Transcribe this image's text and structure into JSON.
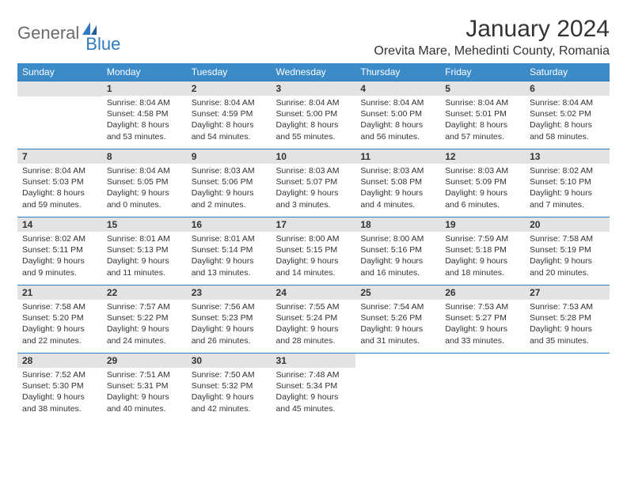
{
  "brand": {
    "text1": "General",
    "text2": "Blue"
  },
  "title": "January 2024",
  "location": "Orevita Mare, Mehedinti County, Romania",
  "colors": {
    "header_bg": "#3b8bc9",
    "header_border": "#2f7bbf",
    "daynum_bg": "#e3e3e3",
    "text": "#333333",
    "logo_gray": "#6b6b6b",
    "logo_blue": "#2f7bbf",
    "page_bg": "#ffffff"
  },
  "weekdays": [
    "Sunday",
    "Monday",
    "Tuesday",
    "Wednesday",
    "Thursday",
    "Friday",
    "Saturday"
  ],
  "weeks": [
    [
      {
        "n": "",
        "sr": "",
        "ss": "",
        "d1": "",
        "d2": ""
      },
      {
        "n": "1",
        "sr": "Sunrise: 8:04 AM",
        "ss": "Sunset: 4:58 PM",
        "d1": "Daylight: 8 hours",
        "d2": "and 53 minutes."
      },
      {
        "n": "2",
        "sr": "Sunrise: 8:04 AM",
        "ss": "Sunset: 4:59 PM",
        "d1": "Daylight: 8 hours",
        "d2": "and 54 minutes."
      },
      {
        "n": "3",
        "sr": "Sunrise: 8:04 AM",
        "ss": "Sunset: 5:00 PM",
        "d1": "Daylight: 8 hours",
        "d2": "and 55 minutes."
      },
      {
        "n": "4",
        "sr": "Sunrise: 8:04 AM",
        "ss": "Sunset: 5:00 PM",
        "d1": "Daylight: 8 hours",
        "d2": "and 56 minutes."
      },
      {
        "n": "5",
        "sr": "Sunrise: 8:04 AM",
        "ss": "Sunset: 5:01 PM",
        "d1": "Daylight: 8 hours",
        "d2": "and 57 minutes."
      },
      {
        "n": "6",
        "sr": "Sunrise: 8:04 AM",
        "ss": "Sunset: 5:02 PM",
        "d1": "Daylight: 8 hours",
        "d2": "and 58 minutes."
      }
    ],
    [
      {
        "n": "7",
        "sr": "Sunrise: 8:04 AM",
        "ss": "Sunset: 5:03 PM",
        "d1": "Daylight: 8 hours",
        "d2": "and 59 minutes."
      },
      {
        "n": "8",
        "sr": "Sunrise: 8:04 AM",
        "ss": "Sunset: 5:05 PM",
        "d1": "Daylight: 9 hours",
        "d2": "and 0 minutes."
      },
      {
        "n": "9",
        "sr": "Sunrise: 8:03 AM",
        "ss": "Sunset: 5:06 PM",
        "d1": "Daylight: 9 hours",
        "d2": "and 2 minutes."
      },
      {
        "n": "10",
        "sr": "Sunrise: 8:03 AM",
        "ss": "Sunset: 5:07 PM",
        "d1": "Daylight: 9 hours",
        "d2": "and 3 minutes."
      },
      {
        "n": "11",
        "sr": "Sunrise: 8:03 AM",
        "ss": "Sunset: 5:08 PM",
        "d1": "Daylight: 9 hours",
        "d2": "and 4 minutes."
      },
      {
        "n": "12",
        "sr": "Sunrise: 8:03 AM",
        "ss": "Sunset: 5:09 PM",
        "d1": "Daylight: 9 hours",
        "d2": "and 6 minutes."
      },
      {
        "n": "13",
        "sr": "Sunrise: 8:02 AM",
        "ss": "Sunset: 5:10 PM",
        "d1": "Daylight: 9 hours",
        "d2": "and 7 minutes."
      }
    ],
    [
      {
        "n": "14",
        "sr": "Sunrise: 8:02 AM",
        "ss": "Sunset: 5:11 PM",
        "d1": "Daylight: 9 hours",
        "d2": "and 9 minutes."
      },
      {
        "n": "15",
        "sr": "Sunrise: 8:01 AM",
        "ss": "Sunset: 5:13 PM",
        "d1": "Daylight: 9 hours",
        "d2": "and 11 minutes."
      },
      {
        "n": "16",
        "sr": "Sunrise: 8:01 AM",
        "ss": "Sunset: 5:14 PM",
        "d1": "Daylight: 9 hours",
        "d2": "and 13 minutes."
      },
      {
        "n": "17",
        "sr": "Sunrise: 8:00 AM",
        "ss": "Sunset: 5:15 PM",
        "d1": "Daylight: 9 hours",
        "d2": "and 14 minutes."
      },
      {
        "n": "18",
        "sr": "Sunrise: 8:00 AM",
        "ss": "Sunset: 5:16 PM",
        "d1": "Daylight: 9 hours",
        "d2": "and 16 minutes."
      },
      {
        "n": "19",
        "sr": "Sunrise: 7:59 AM",
        "ss": "Sunset: 5:18 PM",
        "d1": "Daylight: 9 hours",
        "d2": "and 18 minutes."
      },
      {
        "n": "20",
        "sr": "Sunrise: 7:58 AM",
        "ss": "Sunset: 5:19 PM",
        "d1": "Daylight: 9 hours",
        "d2": "and 20 minutes."
      }
    ],
    [
      {
        "n": "21",
        "sr": "Sunrise: 7:58 AM",
        "ss": "Sunset: 5:20 PM",
        "d1": "Daylight: 9 hours",
        "d2": "and 22 minutes."
      },
      {
        "n": "22",
        "sr": "Sunrise: 7:57 AM",
        "ss": "Sunset: 5:22 PM",
        "d1": "Daylight: 9 hours",
        "d2": "and 24 minutes."
      },
      {
        "n": "23",
        "sr": "Sunrise: 7:56 AM",
        "ss": "Sunset: 5:23 PM",
        "d1": "Daylight: 9 hours",
        "d2": "and 26 minutes."
      },
      {
        "n": "24",
        "sr": "Sunrise: 7:55 AM",
        "ss": "Sunset: 5:24 PM",
        "d1": "Daylight: 9 hours",
        "d2": "and 28 minutes."
      },
      {
        "n": "25",
        "sr": "Sunrise: 7:54 AM",
        "ss": "Sunset: 5:26 PM",
        "d1": "Daylight: 9 hours",
        "d2": "and 31 minutes."
      },
      {
        "n": "26",
        "sr": "Sunrise: 7:53 AM",
        "ss": "Sunset: 5:27 PM",
        "d1": "Daylight: 9 hours",
        "d2": "and 33 minutes."
      },
      {
        "n": "27",
        "sr": "Sunrise: 7:53 AM",
        "ss": "Sunset: 5:28 PM",
        "d1": "Daylight: 9 hours",
        "d2": "and 35 minutes."
      }
    ],
    [
      {
        "n": "28",
        "sr": "Sunrise: 7:52 AM",
        "ss": "Sunset: 5:30 PM",
        "d1": "Daylight: 9 hours",
        "d2": "and 38 minutes."
      },
      {
        "n": "29",
        "sr": "Sunrise: 7:51 AM",
        "ss": "Sunset: 5:31 PM",
        "d1": "Daylight: 9 hours",
        "d2": "and 40 minutes."
      },
      {
        "n": "30",
        "sr": "Sunrise: 7:50 AM",
        "ss": "Sunset: 5:32 PM",
        "d1": "Daylight: 9 hours",
        "d2": "and 42 minutes."
      },
      {
        "n": "31",
        "sr": "Sunrise: 7:48 AM",
        "ss": "Sunset: 5:34 PM",
        "d1": "Daylight: 9 hours",
        "d2": "and 45 minutes."
      },
      {
        "n": "",
        "sr": "",
        "ss": "",
        "d1": "",
        "d2": ""
      },
      {
        "n": "",
        "sr": "",
        "ss": "",
        "d1": "",
        "d2": ""
      },
      {
        "n": "",
        "sr": "",
        "ss": "",
        "d1": "",
        "d2": ""
      }
    ]
  ]
}
